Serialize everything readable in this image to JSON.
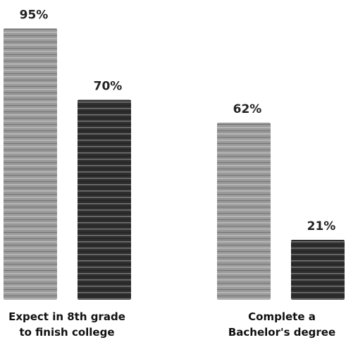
{
  "chart_data": {
    "type": "bar",
    "categories": [
      "Expect in 8th grade\nto finish college",
      "Complete a\nBachelor's degree"
    ],
    "series": [
      {
        "color": "#9a9a9a",
        "values": [
          95,
          62
        ],
        "value_labels": [
          "95%",
          "62%"
        ]
      },
      {
        "color": "#2e2e2e",
        "values": [
          70,
          21
        ],
        "value_labels": [
          "70%",
          "21%"
        ]
      }
    ],
    "ylim": [
      0,
      100
    ]
  }
}
